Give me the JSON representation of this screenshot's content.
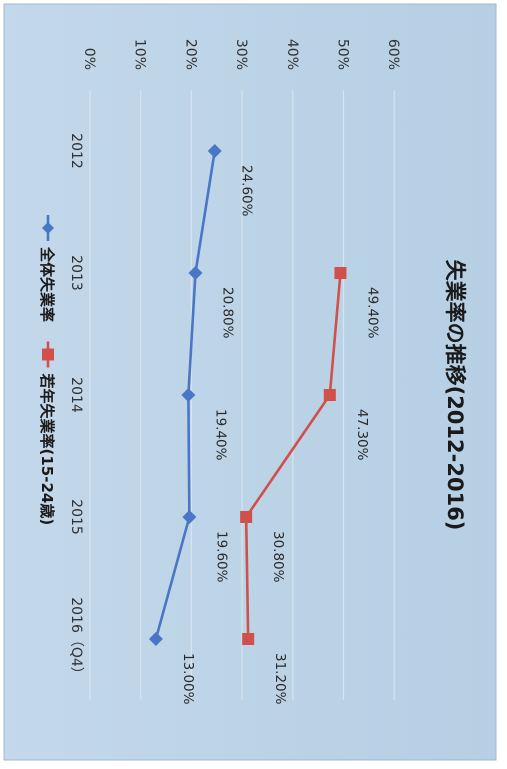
{
  "chart_data": {
    "type": "line",
    "title": "失業率の推移(2012-2016)",
    "categories": [
      "2012",
      "2013",
      "2014",
      "2015",
      "2016（Q4）"
    ],
    "ylim": [
      0,
      60
    ],
    "y_ticks": [
      "0%",
      "10%",
      "20%",
      "30%",
      "40%",
      "50%",
      "60%"
    ],
    "y_tick_values": [
      0,
      10,
      20,
      30,
      40,
      50,
      60
    ],
    "grid": true,
    "legend_position": "bottom",
    "orientation": "rotated 90° clockwise",
    "series": [
      {
        "name": "全体失業率",
        "color": "#4a76c6",
        "marker": "diamond",
        "values": [
          24.6,
          20.8,
          19.4,
          19.6,
          13.0
        ],
        "labels": [
          "24.60%",
          "20.80%",
          "19.40%",
          "19.60%",
          "13.00%"
        ]
      },
      {
        "name": "若年失業率(15-24歳)",
        "color": "#d0504b",
        "marker": "square",
        "values": [
          null,
          49.4,
          47.3,
          30.8,
          31.2
        ],
        "labels": [
          null,
          "49.40%",
          "47.30%",
          "30.80%",
          "31.20%"
        ]
      }
    ]
  }
}
